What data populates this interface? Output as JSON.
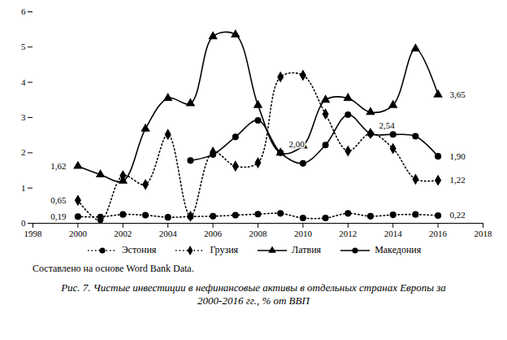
{
  "chart_data": {
    "type": "line",
    "title": "Рис. 7. Чистые инвестиции в нефинансовые активы в отдельных странах Европы за 2000-2016 гг., % от ВВП",
    "caption": "Составлено на основе Word Bank Data.",
    "x": [
      2000,
      2001,
      2002,
      2003,
      2004,
      2005,
      2006,
      2007,
      2008,
      2009,
      2010,
      2011,
      2012,
      2013,
      2014,
      2015,
      2016
    ],
    "xlim": [
      1998,
      2018
    ],
    "xticks": [
      1998,
      2000,
      2002,
      2004,
      2006,
      2008,
      2010,
      2012,
      2014,
      2016,
      2018
    ],
    "ylim": [
      0,
      6
    ],
    "yticks": [
      0,
      1,
      2,
      3,
      4,
      5,
      6
    ],
    "grid": false,
    "legend": "bottom",
    "data_labels": true,
    "series": [
      {
        "name": "Эстония",
        "color": "#000000",
        "line_style": "dotted",
        "marker": "circle",
        "values": [
          0.19,
          0.18,
          0.25,
          0.23,
          0.17,
          0.19,
          0.2,
          0.23,
          0.26,
          0.28,
          0.15,
          0.15,
          0.28,
          0.2,
          0.24,
          0.25,
          0.22
        ],
        "value_labels": [
          "0,19",
          null,
          null,
          null,
          null,
          null,
          null,
          null,
          null,
          null,
          null,
          null,
          null,
          null,
          null,
          null,
          "0,22"
        ]
      },
      {
        "name": "Грузия",
        "color": "#000000",
        "line_style": "dotted",
        "marker": "diamond",
        "values": [
          0.65,
          0.08,
          1.35,
          1.1,
          2.52,
          0.2,
          2.02,
          1.62,
          1.72,
          4.15,
          4.2,
          3.1,
          2.05,
          2.55,
          2.12,
          1.25,
          1.22
        ],
        "value_labels": [
          "0,65",
          null,
          null,
          null,
          null,
          null,
          null,
          null,
          null,
          null,
          null,
          null,
          null,
          null,
          null,
          null,
          "1,22"
        ]
      },
      {
        "name": "Латвия",
        "color": "#000000",
        "line_style": "solid",
        "marker": "triangle",
        "values": [
          1.62,
          1.38,
          1.2,
          2.68,
          3.55,
          3.4,
          5.3,
          5.35,
          3.35,
          2.0,
          2.2,
          3.5,
          3.55,
          3.15,
          3.35,
          4.95,
          3.65
        ],
        "value_labels": [
          "1,62",
          null,
          null,
          null,
          null,
          null,
          null,
          null,
          null,
          null,
          null,
          null,
          null,
          null,
          null,
          null,
          "3,65"
        ]
      },
      {
        "name": "Македония",
        "color": "#000000",
        "line_style": "solid",
        "marker": "circle",
        "values": [
          null,
          null,
          null,
          null,
          null,
          1.78,
          1.95,
          2.45,
          2.92,
          2.0,
          1.7,
          2.22,
          3.08,
          2.54,
          2.52,
          2.47,
          1.9
        ],
        "value_labels": [
          null,
          null,
          null,
          null,
          null,
          null,
          null,
          null,
          null,
          "2,00",
          null,
          null,
          null,
          "2,54",
          null,
          null,
          "1,90"
        ]
      }
    ]
  }
}
